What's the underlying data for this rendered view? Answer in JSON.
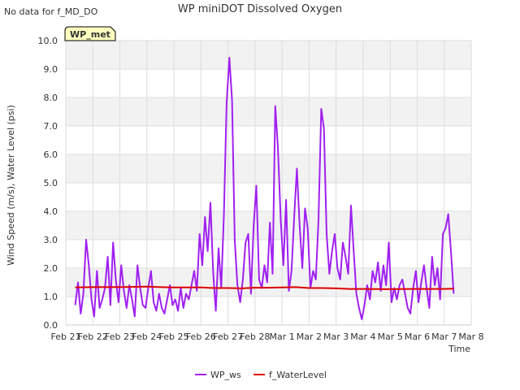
{
  "no_data_note": "No data for f_MD_DO",
  "station_tag": "WP_met",
  "chart_data": {
    "type": "line",
    "title": "WP miniDOT Dissolved Oxygen",
    "xlabel": "Time",
    "ylabel": "Wind Speed (m/s), Water Level (psi)",
    "ylim": [
      0.0,
      10.0
    ],
    "yticks": [
      "0.0",
      "1.0",
      "2.0",
      "3.0",
      "4.0",
      "5.0",
      "6.0",
      "7.0",
      "8.0",
      "9.0",
      "10.0"
    ],
    "xlim": [
      0,
      15
    ],
    "xticks": [
      "Feb 21",
      "Feb 22",
      "Feb 23",
      "Feb 24",
      "Feb 25",
      "Feb 26",
      "Feb 27",
      "Feb 28",
      "Mar 1",
      "Mar 2",
      "Mar 3",
      "Mar 4",
      "Mar 5",
      "Mar 6",
      "Mar 7",
      "Mar 8"
    ],
    "grid": true,
    "legend_position": "bottom",
    "colors": {
      "WP_ws": "#a020f0",
      "f_WaterLevel": "#dd0000",
      "band": "#f2f2f2",
      "grid": "#dddddd"
    },
    "series": [
      {
        "name": "WP_ws",
        "x": [
          0.35,
          0.45,
          0.55,
          0.65,
          0.75,
          0.85,
          0.95,
          1.05,
          1.15,
          1.25,
          1.35,
          1.45,
          1.55,
          1.65,
          1.75,
          1.85,
          1.95,
          2.05,
          2.15,
          2.25,
          2.35,
          2.45,
          2.55,
          2.65,
          2.75,
          2.85,
          2.95,
          3.05,
          3.15,
          3.25,
          3.35,
          3.45,
          3.55,
          3.65,
          3.75,
          3.85,
          3.95,
          4.05,
          4.15,
          4.25,
          4.35,
          4.45,
          4.55,
          4.65,
          4.75,
          4.85,
          4.95,
          5.05,
          5.15,
          5.25,
          5.35,
          5.45,
          5.55,
          5.65,
          5.75,
          5.85,
          5.95,
          6.05,
          6.15,
          6.25,
          6.35,
          6.45,
          6.55,
          6.65,
          6.75,
          6.85,
          6.95,
          7.05,
          7.15,
          7.25,
          7.35,
          7.45,
          7.55,
          7.65,
          7.75,
          7.85,
          7.95,
          8.05,
          8.15,
          8.25,
          8.35,
          8.45,
          8.55,
          8.65,
          8.75,
          8.85,
          8.95,
          9.05,
          9.15,
          9.25,
          9.35,
          9.45,
          9.55,
          9.65,
          9.75,
          9.85,
          9.95,
          10.05,
          10.15,
          10.25,
          10.35,
          10.45,
          10.55,
          10.65,
          10.75,
          10.85,
          10.95,
          11.05,
          11.15,
          11.25,
          11.35,
          11.45,
          11.55,
          11.65,
          11.75,
          11.85,
          11.95,
          12.05,
          12.15,
          12.25,
          12.35,
          12.45,
          12.55,
          12.65,
          12.75,
          12.85,
          12.95,
          13.05,
          13.15,
          13.25,
          13.35,
          13.45,
          13.55,
          13.65,
          13.75,
          13.85,
          13.95,
          14.05,
          14.15,
          14.25,
          14.35
        ],
        "y": [
          0.7,
          1.5,
          0.4,
          1.1,
          3.0,
          2.1,
          0.9,
          0.3,
          1.9,
          0.6,
          0.9,
          1.3,
          2.4,
          0.7,
          2.9,
          1.6,
          0.8,
          2.1,
          1.2,
          0.6,
          1.4,
          0.9,
          0.3,
          2.1,
          1.3,
          0.7,
          0.6,
          1.3,
          1.9,
          0.8,
          0.5,
          1.1,
          0.6,
          0.4,
          0.9,
          1.4,
          0.7,
          0.9,
          0.5,
          1.3,
          0.6,
          1.1,
          0.9,
          1.4,
          1.9,
          1.2,
          3.2,
          2.1,
          3.8,
          2.6,
          4.3,
          1.9,
          0.5,
          2.7,
          1.3,
          3.9,
          7.8,
          9.4,
          7.9,
          3.0,
          1.4,
          0.8,
          1.6,
          2.9,
          3.2,
          1.1,
          3.5,
          4.9,
          1.6,
          1.3,
          2.1,
          1.5,
          3.6,
          1.8,
          7.7,
          6.2,
          3.7,
          2.1,
          4.4,
          1.2,
          1.9,
          3.8,
          5.5,
          3.5,
          2.0,
          4.1,
          3.4,
          1.3,
          1.9,
          1.6,
          3.7,
          7.6,
          6.9,
          3.2,
          1.8,
          2.6,
          3.2,
          2.0,
          1.6,
          2.9,
          2.4,
          1.8,
          4.2,
          2.6,
          1.1,
          0.6,
          0.2,
          0.7,
          1.4,
          0.9,
          1.9,
          1.5,
          2.2,
          1.2,
          2.1,
          1.4,
          2.9,
          0.8,
          1.3,
          0.9,
          1.4,
          1.6,
          1.1,
          0.6,
          0.4,
          1.3,
          1.9,
          0.8,
          1.5,
          2.1,
          1.3,
          0.6,
          2.4,
          1.4,
          2.0,
          0.9,
          3.2,
          3.4,
          3.9,
          2.6,
          1.1
        ],
        "color": "#a020f0"
      },
      {
        "name": "f_WaterLevel",
        "x": [
          0.35,
          1.0,
          2.0,
          3.0,
          3.5,
          4.0,
          5.0,
          5.5,
          6.0,
          6.5,
          7.0,
          7.5,
          8.0,
          8.5,
          9.0,
          9.5,
          10.0,
          10.5,
          11.0,
          12.0,
          13.0,
          14.0,
          14.35
        ],
        "y": [
          1.32,
          1.33,
          1.33,
          1.35,
          1.33,
          1.32,
          1.32,
          1.3,
          1.3,
          1.29,
          1.31,
          1.31,
          1.32,
          1.33,
          1.3,
          1.3,
          1.29,
          1.27,
          1.27,
          1.26,
          1.27,
          1.27,
          1.28
        ],
        "color": "#dd0000"
      }
    ]
  }
}
